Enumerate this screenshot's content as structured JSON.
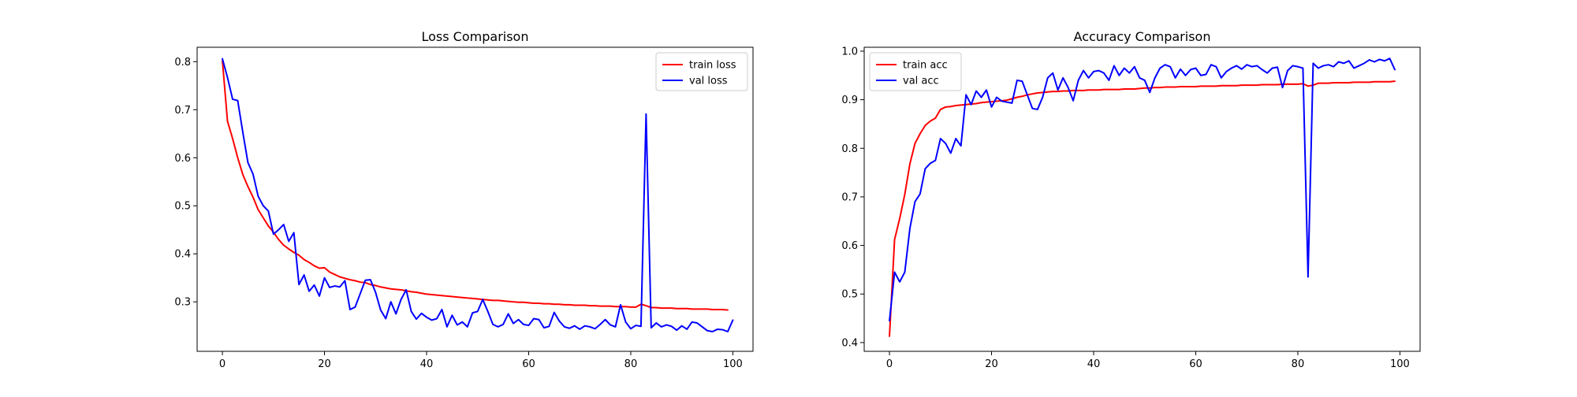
{
  "chart_data": [
    {
      "type": "line",
      "title": "Loss Comparison",
      "xlabel": "",
      "ylabel": "",
      "xlim": [
        -4.95,
        103.95
      ],
      "ylim": [
        0.197,
        0.83
      ],
      "xticks": [
        0,
        20,
        40,
        60,
        80,
        100
      ],
      "yticks": [
        0.3,
        0.4,
        0.5,
        0.6,
        0.7,
        0.8
      ],
      "ytick_decimals": 1,
      "grid": false,
      "legend_position": "top-right",
      "series": [
        {
          "name": "train loss",
          "color": "#ff0000",
          "x_start": 0,
          "values": [
            0.802,
            0.676,
            0.64,
            0.6,
            0.565,
            0.54,
            0.518,
            0.492,
            0.475,
            0.458,
            0.445,
            0.43,
            0.418,
            0.41,
            0.403,
            0.397,
            0.388,
            0.382,
            0.375,
            0.37,
            0.371,
            0.362,
            0.357,
            0.352,
            0.349,
            0.346,
            0.344,
            0.341,
            0.34,
            0.336,
            0.334,
            0.331,
            0.329,
            0.327,
            0.326,
            0.325,
            0.323,
            0.321,
            0.32,
            0.318,
            0.316,
            0.315,
            0.314,
            0.313,
            0.312,
            0.311,
            0.31,
            0.309,
            0.308,
            0.307,
            0.306,
            0.305,
            0.304,
            0.303,
            0.303,
            0.302,
            0.301,
            0.3,
            0.299,
            0.299,
            0.298,
            0.297,
            0.297,
            0.296,
            0.296,
            0.295,
            0.295,
            0.294,
            0.294,
            0.293,
            0.293,
            0.293,
            0.292,
            0.292,
            0.291,
            0.291,
            0.291,
            0.29,
            0.29,
            0.29,
            0.289,
            0.289,
            0.295,
            0.292,
            0.288,
            0.288,
            0.287,
            0.287,
            0.287,
            0.286,
            0.286,
            0.286,
            0.285,
            0.285,
            0.285,
            0.285,
            0.284,
            0.284,
            0.284,
            0.283
          ]
        },
        {
          "name": "val loss",
          "color": "#0000ff",
          "x_start": 0,
          "values": [
            0.806,
            0.767,
            0.722,
            0.719,
            0.653,
            0.59,
            0.566,
            0.52,
            0.5,
            0.489,
            0.441,
            0.45,
            0.461,
            0.426,
            0.444,
            0.336,
            0.356,
            0.322,
            0.335,
            0.312,
            0.35,
            0.33,
            0.333,
            0.331,
            0.344,
            0.284,
            0.289,
            0.317,
            0.345,
            0.346,
            0.32,
            0.283,
            0.265,
            0.3,
            0.275,
            0.305,
            0.325,
            0.28,
            0.264,
            0.276,
            0.268,
            0.262,
            0.265,
            0.284,
            0.248,
            0.272,
            0.252,
            0.258,
            0.248,
            0.277,
            0.28,
            0.305,
            0.28,
            0.253,
            0.248,
            0.253,
            0.275,
            0.255,
            0.263,
            0.253,
            0.251,
            0.265,
            0.263,
            0.246,
            0.249,
            0.278,
            0.26,
            0.248,
            0.245,
            0.25,
            0.243,
            0.25,
            0.248,
            0.244,
            0.253,
            0.263,
            0.252,
            0.248,
            0.294,
            0.258,
            0.244,
            0.251,
            0.249,
            0.691,
            0.246,
            0.256,
            0.248,
            0.252,
            0.249,
            0.241,
            0.25,
            0.243,
            0.258,
            0.256,
            0.248,
            0.24,
            0.238,
            0.243,
            0.242,
            0.238,
            0.262
          ]
        }
      ]
    },
    {
      "type": "line",
      "title": "Accuracy Comparison",
      "xlabel": "",
      "ylabel": "",
      "xlim": [
        -4.95,
        103.95
      ],
      "ylim": [
        0.382,
        1.008
      ],
      "xticks": [
        0,
        20,
        40,
        60,
        80,
        100
      ],
      "yticks": [
        0.4,
        0.5,
        0.6,
        0.7,
        0.8,
        0.9,
        1.0
      ],
      "ytick_decimals": 1,
      "grid": false,
      "legend_position": "top-left",
      "series": [
        {
          "name": "train acc",
          "color": "#ff0000",
          "x_start": 0,
          "values": [
            0.413,
            0.612,
            0.655,
            0.705,
            0.768,
            0.81,
            0.83,
            0.847,
            0.856,
            0.862,
            0.88,
            0.885,
            0.886,
            0.888,
            0.889,
            0.89,
            0.891,
            0.892,
            0.894,
            0.895,
            0.896,
            0.897,
            0.898,
            0.899,
            0.902,
            0.905,
            0.907,
            0.91,
            0.912,
            0.914,
            0.915,
            0.916,
            0.917,
            0.917,
            0.918,
            0.918,
            0.919,
            0.919,
            0.919,
            0.92,
            0.92,
            0.92,
            0.921,
            0.921,
            0.921,
            0.921,
            0.922,
            0.922,
            0.922,
            0.923,
            0.924,
            0.924,
            0.925,
            0.925,
            0.926,
            0.926,
            0.926,
            0.927,
            0.927,
            0.927,
            0.927,
            0.928,
            0.928,
            0.928,
            0.928,
            0.929,
            0.929,
            0.929,
            0.929,
            0.93,
            0.93,
            0.93,
            0.93,
            0.931,
            0.931,
            0.931,
            0.931,
            0.932,
            0.932,
            0.932,
            0.932,
            0.933,
            0.928,
            0.93,
            0.934,
            0.934,
            0.934,
            0.935,
            0.935,
            0.935,
            0.935,
            0.936,
            0.936,
            0.936,
            0.936,
            0.937,
            0.937,
            0.937,
            0.937,
            0.938
          ]
        },
        {
          "name": "val acc",
          "color": "#0000ff",
          "x_start": 0,
          "values": [
            0.445,
            0.545,
            0.525,
            0.545,
            0.635,
            0.69,
            0.706,
            0.758,
            0.769,
            0.775,
            0.82,
            0.81,
            0.79,
            0.82,
            0.805,
            0.91,
            0.89,
            0.918,
            0.905,
            0.92,
            0.885,
            0.905,
            0.897,
            0.895,
            0.893,
            0.94,
            0.938,
            0.91,
            0.882,
            0.88,
            0.905,
            0.945,
            0.955,
            0.92,
            0.945,
            0.925,
            0.898,
            0.94,
            0.96,
            0.945,
            0.958,
            0.96,
            0.955,
            0.94,
            0.97,
            0.95,
            0.965,
            0.955,
            0.968,
            0.945,
            0.94,
            0.915,
            0.945,
            0.965,
            0.972,
            0.968,
            0.945,
            0.963,
            0.95,
            0.962,
            0.965,
            0.95,
            0.952,
            0.972,
            0.968,
            0.945,
            0.958,
            0.965,
            0.97,
            0.963,
            0.972,
            0.968,
            0.97,
            0.962,
            0.955,
            0.965,
            0.967,
            0.925,
            0.96,
            0.97,
            0.968,
            0.965,
            0.535,
            0.975,
            0.965,
            0.97,
            0.972,
            0.968,
            0.978,
            0.975,
            0.98,
            0.965,
            0.97,
            0.975,
            0.982,
            0.978,
            0.983,
            0.98,
            0.985,
            0.962
          ]
        }
      ]
    }
  ]
}
